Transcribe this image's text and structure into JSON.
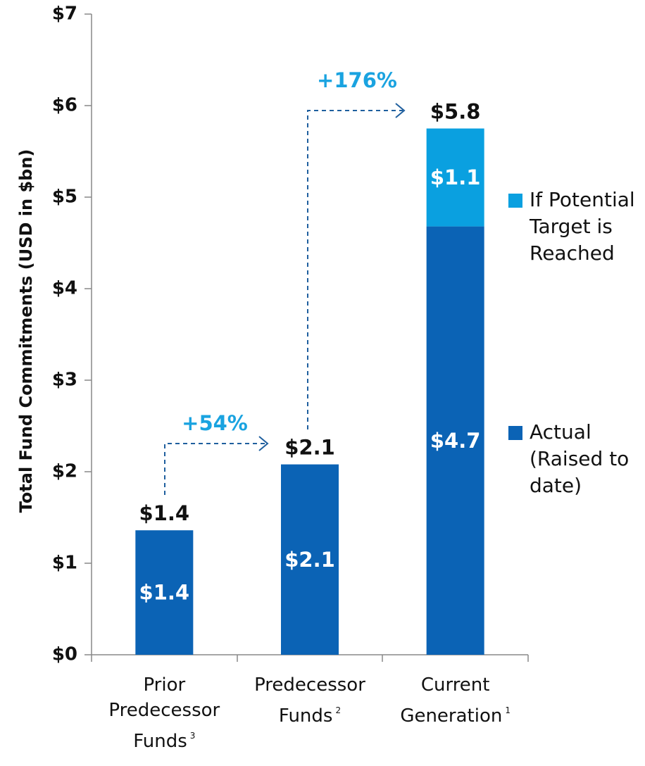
{
  "chart_data": {
    "type": "stacked-bar",
    "y_label": "Total Fund Commitments (USD in $bn)",
    "categories": [
      "Prior Predecessor Funds",
      "Predecessor Funds",
      "Current Generation"
    ],
    "footnote_marks": [
      "3",
      "2",
      "1"
    ],
    "series": [
      {
        "name": "Actual (Raised to date)",
        "color": "#0b63b5",
        "values": [
          1.36,
          2.08,
          4.68
        ],
        "value_labels": [
          "$1.4",
          "$2.1",
          "$4.7"
        ]
      },
      {
        "name": "If Potential Target is Reached",
        "color": "#0aa0e0",
        "values": [
          null,
          null,
          1.07
        ],
        "value_labels": [
          null,
          null,
          "$1.1"
        ]
      }
    ],
    "totals": {
      "values": [
        1.36,
        2.08,
        5.75
      ],
      "value_labels": [
        "$1.4",
        "$2.1",
        "$5.8"
      ]
    },
    "annotations": [
      {
        "text": "+54%",
        "color": "#1aa3e0"
      },
      {
        "text": "+176%",
        "color": "#1aa3e0"
      }
    ],
    "ylim": [
      0,
      7
    ],
    "yticks": [
      {
        "value": 0,
        "label": "$0"
      },
      {
        "value": 1,
        "label": "$1"
      },
      {
        "value": 2,
        "label": "$2"
      },
      {
        "value": 3,
        "label": "$3"
      },
      {
        "value": 4,
        "label": "$4"
      },
      {
        "value": 5,
        "label": "$5"
      },
      {
        "value": 6,
        "label": "$6"
      },
      {
        "value": 7,
        "label": "$7"
      }
    ]
  }
}
